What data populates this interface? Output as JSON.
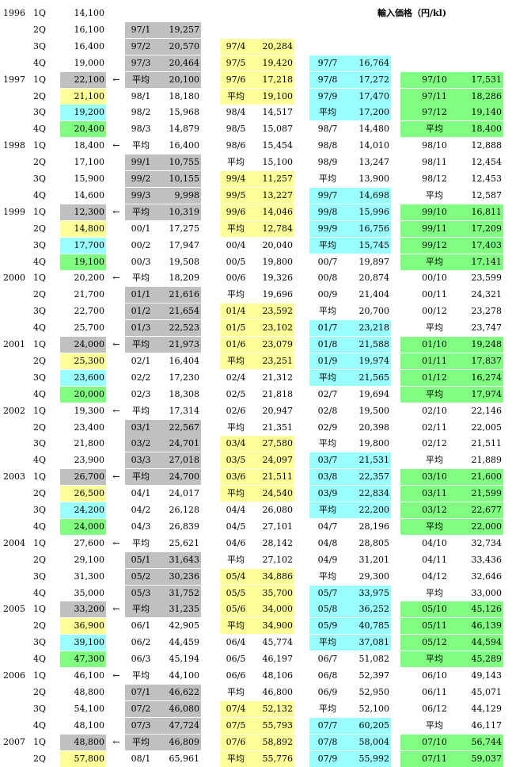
{
  "title": "輸入価格（円/kl)",
  "colors": {
    "gray": "#c0c0c0",
    "yellow": "#ffff99",
    "cyan": "#99ffff",
    "green": "#80ff80"
  },
  "rows": [
    {
      "y": "1996",
      "q": "1Q",
      "v": "14,100"
    },
    {
      "q": "2Q",
      "v": "16,100",
      "l1": "97/1",
      "v1": "19,257",
      "g1": "gray"
    },
    {
      "q": "3Q",
      "v": "16,400",
      "l1": "97/2",
      "v1": "20,570",
      "g1": "gray",
      "l2": "97/4",
      "v2": "20,284",
      "g2": "yellow"
    },
    {
      "q": "4Q",
      "v": "19,000",
      "l1": "97/3",
      "v1": "20,464",
      "g1": "gray",
      "l2": "97/5",
      "v2": "19,420",
      "g2": "yellow",
      "l3": "97/7",
      "v3": "16,764",
      "g3": "cyan"
    },
    {
      "y": "1997",
      "q": "1Q",
      "v": "22,100",
      "vc": "gray",
      "a": "←",
      "l1": "平均",
      "v1": "20,100",
      "g1": "gray",
      "l2": "97/6",
      "v2": "17,218",
      "g2": "yellow",
      "l3": "97/8",
      "v3": "17,272",
      "g3": "cyan",
      "l4": "97/10",
      "v4": "17,531",
      "g4": "green"
    },
    {
      "q": "2Q",
      "v": "21,100",
      "vc": "yellow",
      "l1": "98/1",
      "v1": "18,180",
      "l2": "平均",
      "v2": "19,100",
      "g2": "yellow",
      "l3": "97/9",
      "v3": "17,470",
      "g3": "cyan",
      "l4": "97/11",
      "v4": "18,286",
      "g4": "green"
    },
    {
      "q": "3Q",
      "v": "19,200",
      "vc": "cyan",
      "l1": "98/2",
      "v1": "15,968",
      "l2": "98/4",
      "v2": "14,517",
      "l3": "平均",
      "v3": "17,200",
      "g3": "cyan",
      "l4": "97/12",
      "v4": "19,140",
      "g4": "green"
    },
    {
      "q": "4Q",
      "v": "20,400",
      "vc": "green",
      "l1": "98/3",
      "v1": "14,879",
      "l2": "98/5",
      "v2": "15,087",
      "l3": "98/7",
      "v3": "14,480",
      "l4": "平均",
      "v4": "18,400",
      "g4": "green"
    },
    {
      "y": "1998",
      "q": "1Q",
      "v": "18,400",
      "a": "←",
      "l1": "平均",
      "v1": "16,400",
      "l2": "98/6",
      "v2": "15,454",
      "l3": "98/8",
      "v3": "14,010",
      "l4": "98/10",
      "v4": "12,888"
    },
    {
      "q": "2Q",
      "v": "17,100",
      "l1": "99/1",
      "v1": "10,755",
      "g1": "gray",
      "l2": "平均",
      "v2": "15,100",
      "l3": "98/9",
      "v3": "13,247",
      "l4": "98/11",
      "v4": "12,454"
    },
    {
      "q": "3Q",
      "v": "15,900",
      "l1": "99/2",
      "v1": "10,155",
      "g1": "gray",
      "l2": "99/4",
      "v2": "11,257",
      "g2": "yellow",
      "l3": "平均",
      "v3": "13,900",
      "l4": "98/12",
      "v4": "12,453"
    },
    {
      "q": "4Q",
      "v": "14,600",
      "l1": "99/3",
      "v1": "9,998",
      "g1": "gray",
      "l2": "99/5",
      "v2": "13,227",
      "g2": "yellow",
      "l3": "99/7",
      "v3": "14,698",
      "g3": "cyan",
      "l4": "平均",
      "v4": "12,587"
    },
    {
      "y": "1999",
      "q": "1Q",
      "v": "12,300",
      "vc": "gray",
      "a": "←",
      "l1": "平均",
      "v1": "10,319",
      "g1": "gray",
      "l2": "99/6",
      "v2": "14,046",
      "g2": "yellow",
      "l3": "99/8",
      "v3": "15,996",
      "g3": "cyan",
      "l4": "99/10",
      "v4": "16,811",
      "g4": "green"
    },
    {
      "q": "2Q",
      "v": "14,800",
      "vc": "yellow",
      "l1": "00/1",
      "v1": "17,275",
      "l2": "平均",
      "v2": "12,784",
      "g2": "yellow",
      "l3": "99/9",
      "v3": "16,756",
      "g3": "cyan",
      "l4": "99/11",
      "v4": "17,209",
      "g4": "green"
    },
    {
      "q": "3Q",
      "v": "17,700",
      "vc": "cyan",
      "l1": "00/2",
      "v1": "17,947",
      "l2": "00/4",
      "v2": "20,040",
      "l3": "平均",
      "v3": "15,745",
      "g3": "cyan",
      "l4": "99/12",
      "v4": "17,403",
      "g4": "green"
    },
    {
      "q": "4Q",
      "v": "19,100",
      "vc": "green",
      "l1": "00/3",
      "v1": "19,508",
      "l2": "00/5",
      "v2": "19,800",
      "l3": "00/7",
      "v3": "19,897",
      "l4": "平均",
      "v4": "17,141",
      "g4": "green"
    },
    {
      "y": "2000",
      "q": "1Q",
      "v": "20,200",
      "a": "←",
      "l1": "平均",
      "v1": "18,209",
      "l2": "00/6",
      "v2": "19,326",
      "l3": "00/8",
      "v3": "20,874",
      "l4": "00/10",
      "v4": "23,599"
    },
    {
      "q": "2Q",
      "v": "21,700",
      "l1": "01/1",
      "v1": "21,616",
      "g1": "gray",
      "l2": "平均",
      "v2": "19,696",
      "l3": "00/9",
      "v3": "21,404",
      "l4": "00/11",
      "v4": "24,321"
    },
    {
      "q": "3Q",
      "v": "22,700",
      "l1": "01/2",
      "v1": "21,654",
      "g1": "gray",
      "l2": "01/4",
      "v2": "23,592",
      "g2": "yellow",
      "l3": "平均",
      "v3": "20,700",
      "l4": "00/12",
      "v4": "23,278"
    },
    {
      "q": "4Q",
      "v": "25,700",
      "l1": "01/3",
      "v1": "22,523",
      "g1": "gray",
      "l2": "01/5",
      "v2": "23,102",
      "g2": "yellow",
      "l3": "01/7",
      "v3": "23,218",
      "g3": "cyan",
      "l4": "平均",
      "v4": "23,747"
    },
    {
      "y": "2001",
      "q": "1Q",
      "v": "24,000",
      "vc": "gray",
      "a": "←",
      "l1": "平均",
      "v1": "21,973",
      "g1": "gray",
      "l2": "01/6",
      "v2": "23,079",
      "g2": "yellow",
      "l3": "01/8",
      "v3": "21,588",
      "g3": "cyan",
      "l4": "01/10",
      "v4": "19,248",
      "g4": "green"
    },
    {
      "q": "2Q",
      "v": "25,300",
      "vc": "yellow",
      "l1": "02/1",
      "v1": "16,404",
      "l2": "平均",
      "v2": "23,251",
      "g2": "yellow",
      "l3": "01/9",
      "v3": "19,974",
      "g3": "cyan",
      "l4": "01/11",
      "v4": "17,837",
      "g4": "green"
    },
    {
      "q": "3Q",
      "v": "23,600",
      "vc": "cyan",
      "l1": "02/2",
      "v1": "17,230",
      "l2": "02/4",
      "v2": "21,312",
      "l3": "平均",
      "v3": "21,565",
      "g3": "cyan",
      "l4": "01/12",
      "v4": "16,274",
      "g4": "green"
    },
    {
      "q": "4Q",
      "v": "20,000",
      "vc": "green",
      "l1": "02/3",
      "v1": "18,308",
      "l2": "02/5",
      "v2": "21,818",
      "l3": "02/7",
      "v3": "19,694",
      "l4": "平均",
      "v4": "17,974",
      "g4": "green"
    },
    {
      "y": "2002",
      "q": "1Q",
      "v": "19,300",
      "a": "←",
      "l1": "平均",
      "v1": "17,314",
      "l2": "02/6",
      "v2": "20,947",
      "l3": "02/8",
      "v3": "19,500",
      "l4": "02/10",
      "v4": "22,146"
    },
    {
      "q": "2Q",
      "v": "23,400",
      "l1": "03/1",
      "v1": "22,567",
      "g1": "gray",
      "l2": "平均",
      "v2": "21,351",
      "l3": "02/9",
      "v3": "20,398",
      "l4": "02/11",
      "v4": "22,005"
    },
    {
      "q": "3Q",
      "v": "21,800",
      "l1": "03/2",
      "v1": "24,701",
      "g1": "gray",
      "l2": "03/4",
      "v2": "27,580",
      "g2": "yellow",
      "l3": "平均",
      "v3": "19,800",
      "l4": "02/12",
      "v4": "21,511"
    },
    {
      "q": "4Q",
      "v": "23,900",
      "l1": "03/3",
      "v1": "27,018",
      "g1": "gray",
      "l2": "03/5",
      "v2": "24,097",
      "g2": "yellow",
      "l3": "03/7",
      "v3": "21,531",
      "g3": "cyan",
      "l4": "平均",
      "v4": "21,889"
    },
    {
      "y": "2003",
      "q": "1Q",
      "v": "26,700",
      "vc": "gray",
      "a": "←",
      "l1": "平均",
      "v1": "24,700",
      "g1": "gray",
      "l2": "03/6",
      "v2": "21,511",
      "g2": "yellow",
      "l3": "03/8",
      "v3": "22,357",
      "g3": "cyan",
      "l4": "03/10",
      "v4": "21,600",
      "g4": "green"
    },
    {
      "q": "2Q",
      "v": "26,500",
      "vc": "yellow",
      "l1": "04/1",
      "v1": "24,017",
      "l2": "平均",
      "v2": "24,540",
      "g2": "yellow",
      "l3": "03/9",
      "v3": "22,834",
      "g3": "cyan",
      "l4": "03/11",
      "v4": "21,599",
      "g4": "green"
    },
    {
      "q": "3Q",
      "v": "24,200",
      "vc": "cyan",
      "l1": "04/2",
      "v1": "26,128",
      "l2": "04/4",
      "v2": "26,080",
      "l3": "平均",
      "v3": "22,200",
      "g3": "cyan",
      "l4": "03/12",
      "v4": "22,677",
      "g4": "green"
    },
    {
      "q": "4Q",
      "v": "24,000",
      "vc": "green",
      "l1": "04/3",
      "v1": "26,839",
      "l2": "04/5",
      "v2": "27,101",
      "l3": "04/7",
      "v3": "28,196",
      "l4": "平均",
      "v4": "22,000",
      "g4": "green"
    },
    {
      "y": "2004",
      "q": "1Q",
      "v": "27,600",
      "a": "←",
      "l1": "平均",
      "v1": "25,621",
      "l2": "04/6",
      "v2": "28,142",
      "l3": "04/8",
      "v3": "28,805",
      "l4": "04/10",
      "v4": "32,734"
    },
    {
      "q": "2Q",
      "v": "29,100",
      "l1": "05/1",
      "v1": "31,643",
      "g1": "gray",
      "l2": "平均",
      "v2": "27,102",
      "l3": "04/9",
      "v3": "31,201",
      "l4": "04/11",
      "v4": "33,436"
    },
    {
      "q": "3Q",
      "v": "31,300",
      "l1": "05/2",
      "v1": "30,236",
      "g1": "gray",
      "l2": "05/4",
      "v2": "34,886",
      "g2": "yellow",
      "l3": "平均",
      "v3": "29,300",
      "l4": "04/12",
      "v4": "32,646"
    },
    {
      "q": "4Q",
      "v": "35,000",
      "l1": "05/3",
      "v1": "31,752",
      "g1": "gray",
      "l2": "05/5",
      "v2": "35,700",
      "g2": "yellow",
      "l3": "05/7",
      "v3": "33,975",
      "g3": "cyan",
      "l4": "平均",
      "v4": "33,000"
    },
    {
      "y": "2005",
      "q": "1Q",
      "v": "33,200",
      "vc": "gray",
      "a": "←",
      "l1": "平均",
      "v1": "31,235",
      "g1": "gray",
      "l2": "05/6",
      "v2": "34,000",
      "g2": "yellow",
      "l3": "05/8",
      "v3": "36,252",
      "g3": "cyan",
      "l4": "05/10",
      "v4": "45,126",
      "g4": "green"
    },
    {
      "q": "2Q",
      "v": "36,900",
      "vc": "yellow",
      "l1": "06/1",
      "v1": "42,905",
      "l2": "平均",
      "v2": "34,900",
      "g2": "yellow",
      "l3": "05/9",
      "v3": "40,785",
      "g3": "cyan",
      "l4": "05/11",
      "v4": "46,139",
      "g4": "green"
    },
    {
      "q": "3Q",
      "v": "39,100",
      "vc": "cyan",
      "l1": "06/2",
      "v1": "44,459",
      "l2": "06/4",
      "v2": "45,774",
      "l3": "平均",
      "v3": "37,081",
      "g3": "cyan",
      "l4": "05/12",
      "v4": "44,594",
      "g4": "green"
    },
    {
      "q": "4Q",
      "v": "47,300",
      "vc": "green",
      "l1": "06/3",
      "v1": "45,194",
      "l2": "06/5",
      "v2": "46,197",
      "l3": "06/7",
      "v3": "51,082",
      "l4": "平均",
      "v4": "45,289",
      "g4": "green"
    },
    {
      "y": "2006",
      "q": "1Q",
      "v": "46,100",
      "a": "←",
      "l1": "平均",
      "v1": "44,100",
      "l2": "06/6",
      "v2": "48,106",
      "l3": "06/8",
      "v3": "52,397",
      "l4": "06/10",
      "v4": "49,143"
    },
    {
      "q": "2Q",
      "v": "48,800",
      "l1": "07/1",
      "v1": "46,622",
      "g1": "gray",
      "l2": "平均",
      "v2": "46,800",
      "l3": "06/9",
      "v3": "52,950",
      "l4": "06/11",
      "v4": "45,071"
    },
    {
      "q": "3Q",
      "v": "54,100",
      "l1": "07/2",
      "v1": "46,080",
      "g1": "gray",
      "l2": "07/4",
      "v2": "52,132",
      "g2": "yellow",
      "l3": "平均",
      "v3": "52,100",
      "l4": "06/12",
      "v4": "44,129"
    },
    {
      "q": "4Q",
      "v": "48,100",
      "l1": "07/3",
      "v1": "47,724",
      "g1": "gray",
      "l2": "07/5",
      "v2": "55,793",
      "g2": "yellow",
      "l3": "07/7",
      "v3": "60,205",
      "g3": "cyan",
      "l4": "平均",
      "v4": "46,117"
    },
    {
      "y": "2007",
      "q": "1Q",
      "v": "48,800",
      "vc": "gray",
      "a": "←",
      "l1": "平均",
      "v1": "46,809",
      "g1": "gray",
      "l2": "07/6",
      "v2": "58,892",
      "g2": "yellow",
      "l3": "07/8",
      "v3": "58,004",
      "g3": "cyan",
      "l4": "07/10",
      "v4": "56,744",
      "g4": "green"
    },
    {
      "q": "2Q",
      "v": "57,800",
      "vc": "yellow",
      "l1": "08/1",
      "v1": "65,961",
      "l2": "平均",
      "v2": "55,776",
      "g2": "yellow",
      "l3": "07/9",
      "v3": "55,992",
      "g3": "cyan",
      "l4": "07/11",
      "v4": "59,037",
      "g4": "green"
    }
  ]
}
